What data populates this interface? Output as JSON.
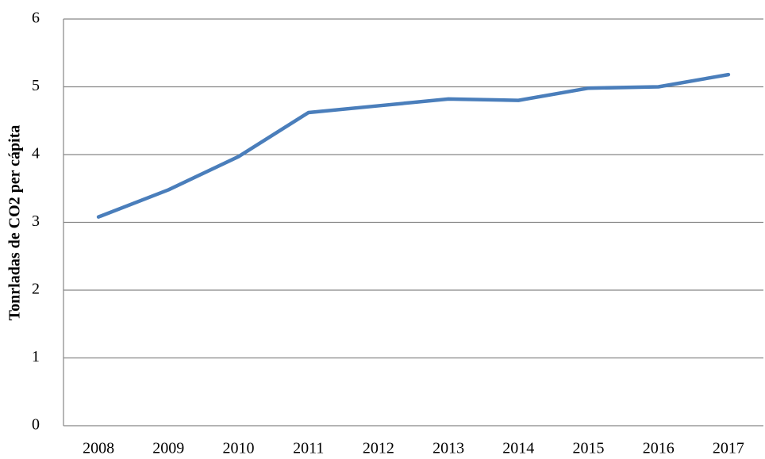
{
  "chart_data": {
    "type": "line",
    "y_label": "Tonrladas de CO2 per cápita",
    "categories": [
      "2008",
      "2009",
      "2010",
      "2011",
      "2012",
      "2013",
      "2014",
      "2015",
      "2016",
      "2017"
    ],
    "values": [
      3.08,
      3.48,
      3.97,
      4.62,
      4.72,
      4.82,
      4.8,
      4.98,
      5.0,
      5.18
    ],
    "color": "#4a7ebb",
    "ylim": [
      0,
      6
    ],
    "yticks": [
      0,
      1,
      2,
      3,
      4,
      5,
      6
    ],
    "grid": true
  }
}
